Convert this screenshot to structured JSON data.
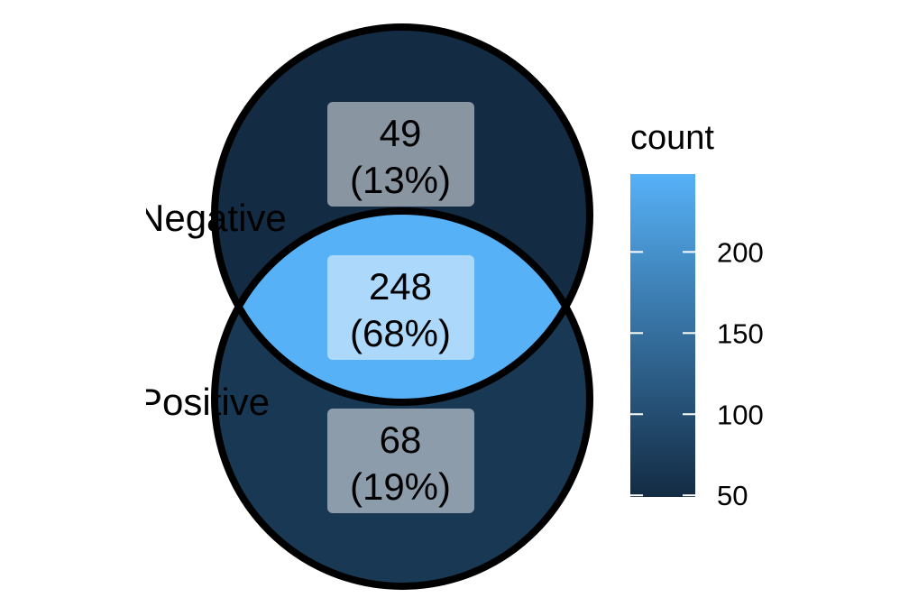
{
  "sets": [
    {
      "name": "Negative"
    },
    {
      "name": "Positive"
    }
  ],
  "regions": [
    {
      "id": "negative-only",
      "count": "49",
      "percent": "(13%)",
      "value": 49
    },
    {
      "id": "intersection",
      "count": "248",
      "percent": "(68%)",
      "value": 248
    },
    {
      "id": "positive-only",
      "count": "68",
      "percent": "(19%)",
      "value": 68
    }
  ],
  "legend": {
    "title": "count",
    "min": 49,
    "max": 248,
    "ticks": [
      {
        "value": 50,
        "label": "50"
      },
      {
        "value": 100,
        "label": "100"
      },
      {
        "value": 150,
        "label": "150"
      },
      {
        "value": 200,
        "label": "200"
      }
    ],
    "color_low": "#132B43",
    "color_high": "#56B1F7"
  },
  "colors": {
    "outline": "#000000",
    "label_box": "#ffffff"
  }
}
